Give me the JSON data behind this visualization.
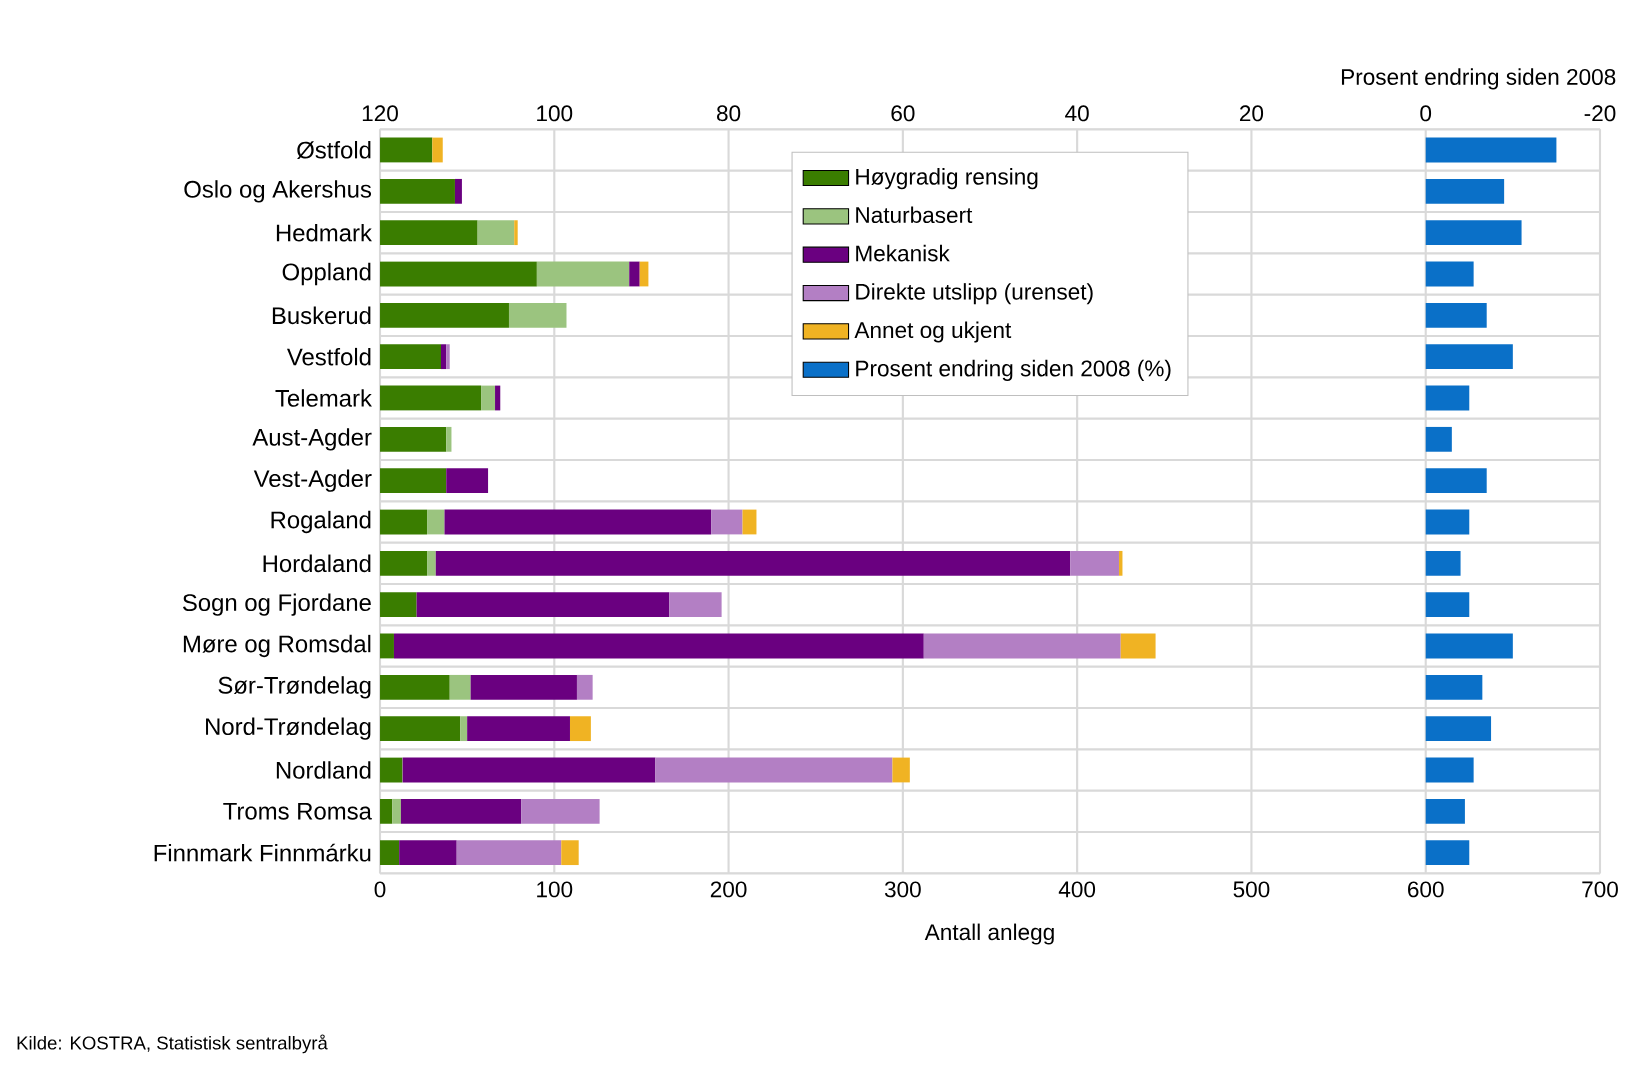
{
  "chart_data": {
    "type": "bar",
    "orientation": "horizontal",
    "stacked": true,
    "xlabel": "Antall anlegg",
    "x2label": "Prosent endring siden 2008",
    "categories": [
      "Østfold",
      "Oslo og Akershus",
      "Hedmark",
      "Oppland",
      "Buskerud",
      "Vestfold",
      "Telemark",
      "Aust-Agder",
      "Vest-Agder",
      "Rogaland",
      "Hordaland",
      "Sogn og Fjordane",
      "Møre og Romsdal",
      "Sør-Trøndelag",
      "Nord-Trøndelag",
      "Nordland",
      "Troms Romsa",
      "Finnmark Finnmárku"
    ],
    "series": [
      {
        "name": "Høygradig rensing",
        "color": "#3a7d00",
        "values": [
          30,
          43,
          56,
          90,
          74,
          35,
          58,
          38,
          38,
          27,
          27,
          21,
          8,
          40,
          46,
          13,
          7,
          11
        ]
      },
      {
        "name": "Naturbasert",
        "color": "#9bc47f",
        "values": [
          null,
          null,
          21,
          53,
          33,
          null,
          8,
          3,
          null,
          10,
          5,
          null,
          null,
          12,
          4,
          null,
          5,
          null
        ]
      },
      {
        "name": "Mekanisk",
        "color": "#6a0080",
        "values": [
          null,
          4,
          null,
          6,
          null,
          3,
          3,
          null,
          24,
          153,
          364,
          145,
          304,
          61,
          59,
          145,
          69,
          33
        ]
      },
      {
        "name": "Direkte utslipp (urenset)",
        "color": "#b37fc4",
        "values": [
          null,
          null,
          null,
          null,
          null,
          2,
          null,
          null,
          null,
          18,
          28,
          30,
          113,
          9,
          null,
          136,
          45,
          60
        ]
      },
      {
        "name": "Annet og ukjent",
        "color": "#f0b323",
        "values": [
          6,
          null,
          2,
          5,
          null,
          null,
          null,
          null,
          null,
          8,
          2,
          null,
          20,
          null,
          12,
          10,
          null,
          10
        ]
      },
      {
        "name": "Prosent endring siden 2008 (%)",
        "color": "#0a70c8",
        "axis": "x2",
        "values": [
          -15,
          -9,
          -11,
          -5.5,
          -7,
          -10,
          -5,
          -3,
          -7,
          -5,
          -4,
          -5,
          -10,
          -6.5,
          -7.5,
          -5.5,
          -4.5,
          -5
        ]
      }
    ],
    "xlim": [
      0,
      700
    ],
    "xticks": [
      0,
      100,
      200,
      300,
      400,
      500,
      600,
      700
    ],
    "x2lim": [
      120,
      -20
    ],
    "x2ticks": [
      120,
      100,
      80,
      60,
      40,
      20,
      0,
      -20
    ],
    "grid": true,
    "legend": "top",
    "annotations": [
      "Kilde: KOSTRA, Statistisk sentralbyrå"
    ]
  }
}
